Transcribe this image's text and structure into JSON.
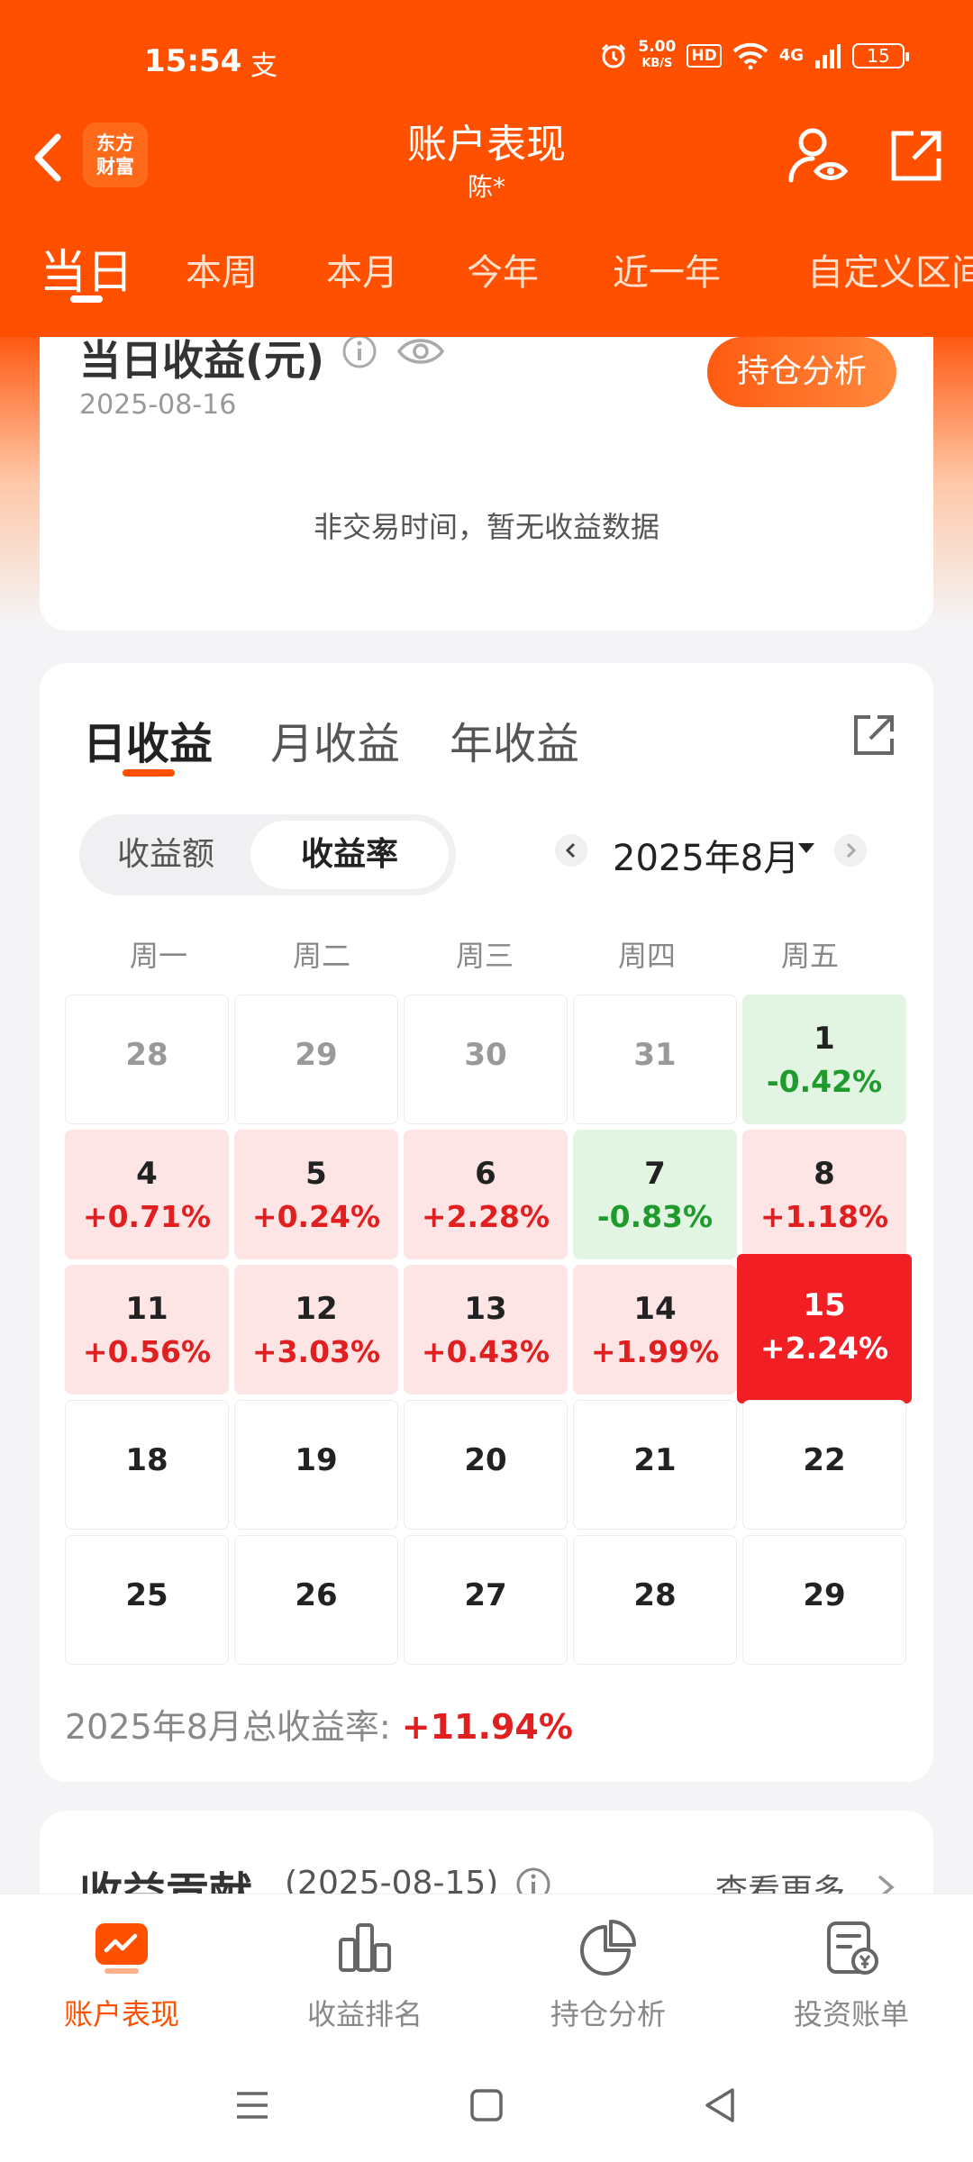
{
  "status_bar": {
    "time": "15:54",
    "pay_icon": "支",
    "net_speed_value": "5.00",
    "net_speed_unit": "KB/S",
    "hd": "HD",
    "signal": "4G",
    "battery": "15"
  },
  "header": {
    "logo_line1": "东方",
    "logo_line2": "财富",
    "title": "账户表现",
    "subtitle": "陈*"
  },
  "period_tabs": [
    "当日",
    "本周",
    "本月",
    "今年",
    "近一年",
    "自定义区间"
  ],
  "daily_card": {
    "title": "当日收益(元)",
    "date": "2025-08-16",
    "holding_button": "持仓分析",
    "empty_text": "非交易时间，暂无收益数据"
  },
  "calendar_card": {
    "tabs": [
      "日收益",
      "月收益",
      "年收益"
    ],
    "toggle": [
      "收益额",
      "收益率"
    ],
    "month": "2025年8月",
    "weekdays": [
      "周一",
      "周二",
      "周三",
      "周四",
      "周五"
    ],
    "rows": [
      [
        {
          "d": "28",
          "v": "",
          "s": "gray"
        },
        {
          "d": "29",
          "v": "",
          "s": "gray"
        },
        {
          "d": "30",
          "v": "",
          "s": "gray"
        },
        {
          "d": "31",
          "v": "",
          "s": "gray"
        },
        {
          "d": "1",
          "v": "-0.42%",
          "s": "down"
        }
      ],
      [
        {
          "d": "4",
          "v": "+0.71%",
          "s": "up"
        },
        {
          "d": "5",
          "v": "+0.24%",
          "s": "up"
        },
        {
          "d": "6",
          "v": "+2.28%",
          "s": "up"
        },
        {
          "d": "7",
          "v": "-0.83%",
          "s": "down"
        },
        {
          "d": "8",
          "v": "+1.18%",
          "s": "up"
        }
      ],
      [
        {
          "d": "11",
          "v": "+0.56%",
          "s": "up"
        },
        {
          "d": "12",
          "v": "+3.03%",
          "s": "up"
        },
        {
          "d": "13",
          "v": "+0.43%",
          "s": "up"
        },
        {
          "d": "14",
          "v": "+1.99%",
          "s": "up"
        },
        {
          "d": "15",
          "v": "+2.24%",
          "s": "today"
        }
      ],
      [
        {
          "d": "18",
          "v": "",
          "s": "none"
        },
        {
          "d": "19",
          "v": "",
          "s": "none"
        },
        {
          "d": "20",
          "v": "",
          "s": "none"
        },
        {
          "d": "21",
          "v": "",
          "s": "none"
        },
        {
          "d": "22",
          "v": "",
          "s": "none"
        }
      ],
      [
        {
          "d": "25",
          "v": "",
          "s": "none"
        },
        {
          "d": "26",
          "v": "",
          "s": "none"
        },
        {
          "d": "27",
          "v": "",
          "s": "none"
        },
        {
          "d": "28",
          "v": "",
          "s": "none"
        },
        {
          "d": "29",
          "v": "",
          "s": "none"
        }
      ]
    ],
    "total_label": "2025年8月总收益率: ",
    "total_value": "+11.94%"
  },
  "contribution_card": {
    "title": "收益贡献",
    "date": "(2025-08-15)",
    "more": "查看更多"
  },
  "bottom_nav": [
    "账户表现",
    "收益排名",
    "持仓分析",
    "投资账单"
  ],
  "colors": {
    "brand": "#ff5000",
    "up": "#e02020",
    "down": "#1f9a2c",
    "today": "#f11f24"
  }
}
